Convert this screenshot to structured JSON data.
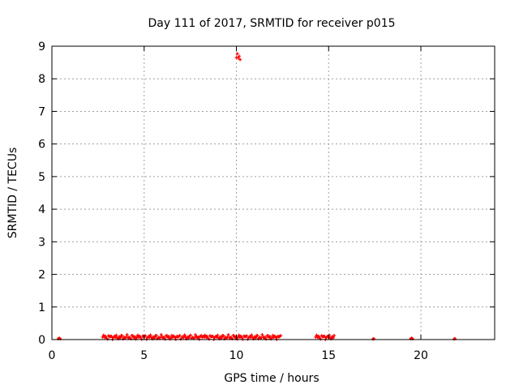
{
  "chart_data": {
    "type": "scatter",
    "title": "Day 111 of 2017, SRMTID for receiver p015",
    "xlabel": "GPS time / hours",
    "ylabel": "SRMTID / TECUs",
    "xlim": [
      0,
      24
    ],
    "ylim": [
      0,
      9
    ],
    "xticks": [
      0,
      5,
      10,
      15,
      20
    ],
    "yticks": [
      0,
      1,
      2,
      3,
      4,
      5,
      6,
      7,
      8,
      9
    ],
    "grid": true,
    "legend": "none",
    "marker_color": "#ff0000",
    "segments": [
      {
        "x_start": 0.35,
        "x_end": 0.45,
        "y_low": 0.0,
        "y_high": 0.05
      },
      {
        "x_start": 2.75,
        "x_end": 8.2,
        "y_low": 0.0,
        "y_high": 0.15
      },
      {
        "x_start": 8.25,
        "x_end": 12.4,
        "y_low": 0.0,
        "y_high": 0.15
      },
      {
        "x_start": 10.0,
        "x_end": 10.2,
        "y_low": 8.5,
        "y_high": 8.8
      },
      {
        "x_start": 14.3,
        "x_end": 15.3,
        "y_low": 0.0,
        "y_high": 0.15
      },
      {
        "x_start": 17.4,
        "x_end": 17.45,
        "y_low": 0.0,
        "y_high": 0.03
      },
      {
        "x_start": 19.45,
        "x_end": 19.55,
        "y_low": 0.0,
        "y_high": 0.05
      },
      {
        "x_start": 21.8,
        "x_end": 21.85,
        "y_low": 0.0,
        "y_high": 0.03
      }
    ]
  }
}
